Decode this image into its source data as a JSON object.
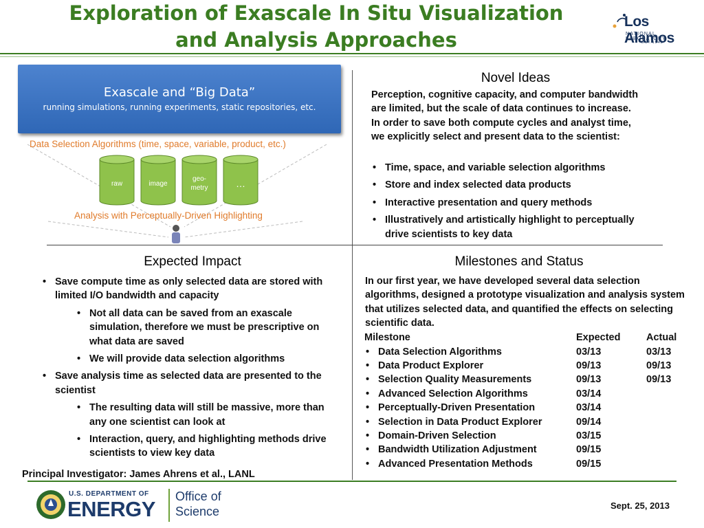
{
  "header": {
    "title_line1": "Exploration of Exascale In Situ Visualization",
    "title_line2": "and Analysis Approaches",
    "logo_name": "Los Alamos",
    "logo_sub": "NATIONAL LABORATORY",
    "logo_est": "EST.1943"
  },
  "diagram": {
    "box_title": "Exascale and “Big Data”",
    "box_sub": "running simulations, running experiments, static repositories, etc.",
    "selection_label": "Data Selection Algorithms (time, space, variable, product, etc.)",
    "cylinders": [
      "raw",
      "image",
      "geo-\nmetry",
      "…"
    ],
    "cyl_raw": "raw",
    "cyl_image": "image",
    "cyl_geo1": "geo-",
    "cyl_geo2": "metry",
    "cyl_more": "…",
    "analysis_label": "Analysis with Perceptually-Driven Highlighting"
  },
  "novel": {
    "heading": "Novel Ideas",
    "intro": "Perception, cognitive capacity, and computer bandwidth are limited, but the scale of data continues to increase. In order to save both compute cycles and analyst time, we explicitly select and present data to the scientist:",
    "bullets": [
      "Time, space, and variable selection algorithms",
      "Store and index selected data products",
      "Interactive presentation and query methods",
      "Illustratively and artistically highlight to perceptually drive scientists to key data"
    ]
  },
  "impact": {
    "heading": "Expected Impact",
    "b1": "Save compute time as only selected data are stored with limited I/O bandwidth and capacity",
    "b1a": "Not all data can be saved from an exascale simulation, therefore we must be prescriptive on what data are saved",
    "b1b": "We will provide data selection algorithms",
    "b2": "Save analysis time as selected data are presented to the scientist",
    "b2a": "The resulting data will still be massive, more than any one scientist can look at",
    "b2b": "Interaction, query, and highlighting methods drive scientists to view key data"
  },
  "milestones": {
    "heading": "Milestones and Status",
    "intro": "In our first year, we have developed several data selection algorithms, designed a prototype visualization and analysis system that utilizes selected data, and quantified the effects on selecting scientific data.",
    "col_milestone": "Milestone",
    "col_expected": "Expected",
    "col_actual": "Actual",
    "rows": [
      {
        "name": "Data Selection Algorithms",
        "expected": "03/13",
        "actual": "03/13"
      },
      {
        "name": "Data Product Explorer",
        "expected": "09/13",
        "actual": "09/13"
      },
      {
        "name": "Selection Quality Measurements",
        "expected": "09/13",
        "actual": "09/13"
      },
      {
        "name": "Advanced Selection Algorithms",
        "expected": "03/14",
        "actual": ""
      },
      {
        "name": "Perceptually-Driven Presentation",
        "expected": "03/14",
        "actual": ""
      },
      {
        "name": "Selection in Data Product Explorer",
        "expected": "09/14",
        "actual": ""
      },
      {
        "name": "Domain-Driven Selection",
        "expected": "03/15",
        "actual": ""
      },
      {
        "name": "Bandwidth Utilization Adjustment",
        "expected": "09/15",
        "actual": ""
      },
      {
        "name": "Advanced Presentation Methods",
        "expected": "09/15",
        "actual": ""
      }
    ]
  },
  "footer": {
    "pi": "Principal Investigator: James Ahrens et al., LANL",
    "date": "Sept. 25, 2013",
    "doe_small": "U.S. DEPARTMENT OF",
    "doe_big": "ENERGY",
    "office1": "Office of",
    "office2": "Science"
  },
  "colors": {
    "title_green": "#3b7d22",
    "accent_orange": "#e07b2b",
    "box_blue": "#3a72c2",
    "cylinder_green": "#8fc24b"
  }
}
